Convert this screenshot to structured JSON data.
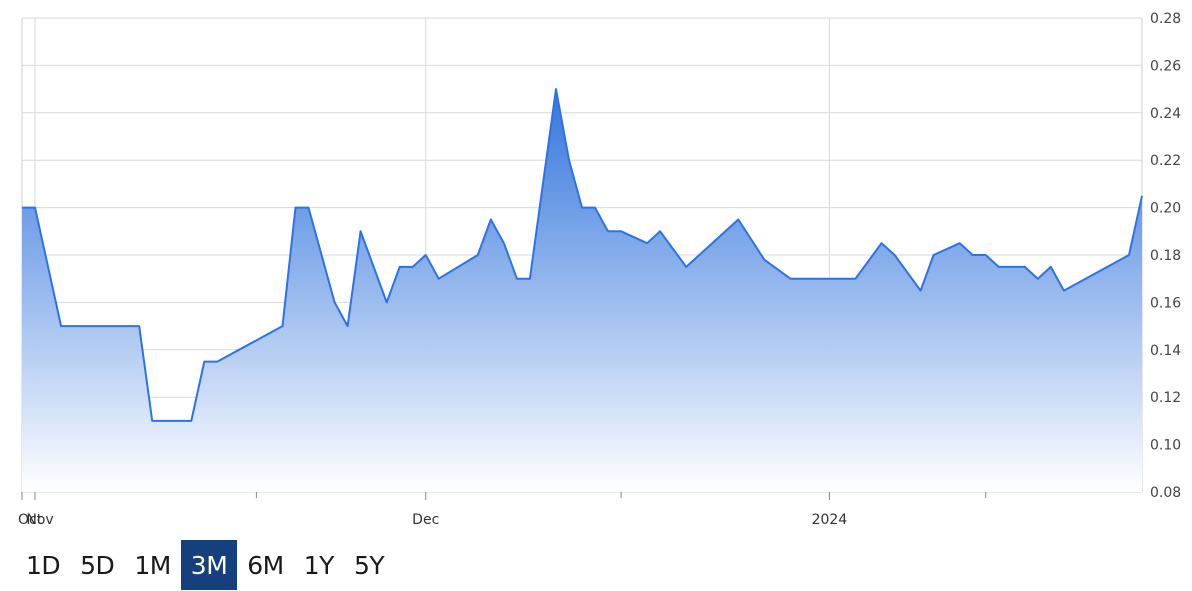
{
  "chart_data": {
    "type": "area",
    "title": "",
    "xlabel": "",
    "ylabel": "",
    "ylim": [
      0.08,
      0.28
    ],
    "y_ticks": [
      "0.08",
      "0.10",
      "0.12",
      "0.14",
      "0.16",
      "0.18",
      "0.20",
      "0.22",
      "0.24",
      "0.26",
      "0.28"
    ],
    "x_ticks": [
      {
        "label": "Oct",
        "date": "2023-10-31"
      },
      {
        "label": "Nov",
        "date": "2023-11-01"
      },
      {
        "label": "Dec",
        "date": "2023-12-01"
      },
      {
        "label": "2024",
        "date": "2024-01-01"
      }
    ],
    "x_range": [
      "2023-10-31",
      "2024-01-25"
    ],
    "grid": true,
    "y_axis_position": "right",
    "fill_gradient": [
      "#2a6fdb",
      "#ffffff"
    ],
    "line_color": "#2e72e6",
    "series": [
      {
        "points": [
          [
            "2023-10-31",
            0.2
          ],
          [
            "2023-11-01",
            0.2
          ],
          [
            "2023-11-03",
            0.15
          ],
          [
            "2023-11-06",
            0.15
          ],
          [
            "2023-11-07",
            0.15
          ],
          [
            "2023-11-08",
            0.15
          ],
          [
            "2023-11-09",
            0.15
          ],
          [
            "2023-11-10",
            0.11
          ],
          [
            "2023-11-13",
            0.11
          ],
          [
            "2023-11-14",
            0.135
          ],
          [
            "2023-11-15",
            0.135
          ],
          [
            "2023-11-20",
            0.15
          ],
          [
            "2023-11-21",
            0.2
          ],
          [
            "2023-11-22",
            0.2
          ],
          [
            "2023-11-24",
            0.16
          ],
          [
            "2023-11-25",
            0.15
          ],
          [
            "2023-11-26",
            0.19
          ],
          [
            "2023-11-28",
            0.16
          ],
          [
            "2023-11-29",
            0.175
          ],
          [
            "2023-11-30",
            0.175
          ],
          [
            "2023-12-01",
            0.18
          ],
          [
            "2023-12-02",
            0.17
          ],
          [
            "2023-12-05",
            0.18
          ],
          [
            "2023-12-06",
            0.195
          ],
          [
            "2023-12-07",
            0.185
          ],
          [
            "2023-12-08",
            0.17
          ],
          [
            "2023-12-09",
            0.17
          ],
          [
            "2023-12-11",
            0.25
          ],
          [
            "2023-12-12",
            0.22
          ],
          [
            "2023-12-13",
            0.2
          ],
          [
            "2023-12-14",
            0.2
          ],
          [
            "2023-12-15",
            0.19
          ],
          [
            "2023-12-16",
            0.19
          ],
          [
            "2023-12-18",
            0.185
          ],
          [
            "2023-12-19",
            0.19
          ],
          [
            "2023-12-21",
            0.175
          ],
          [
            "2023-12-25",
            0.195
          ],
          [
            "2023-12-27",
            0.178
          ],
          [
            "2023-12-29",
            0.17
          ],
          [
            "2024-01-03",
            0.17
          ],
          [
            "2024-01-05",
            0.185
          ],
          [
            "2024-01-06",
            0.18
          ],
          [
            "2024-01-08",
            0.165
          ],
          [
            "2024-01-09",
            0.18
          ],
          [
            "2024-01-11",
            0.185
          ],
          [
            "2024-01-12",
            0.18
          ],
          [
            "2024-01-13",
            0.18
          ],
          [
            "2024-01-14",
            0.175
          ],
          [
            "2024-01-16",
            0.175
          ],
          [
            "2024-01-17",
            0.17
          ],
          [
            "2024-01-18",
            0.175
          ],
          [
            "2024-01-19",
            0.165
          ],
          [
            "2024-01-24",
            0.18
          ],
          [
            "2024-01-25",
            0.205
          ]
        ]
      }
    ]
  },
  "range_selector": {
    "options": [
      "1D",
      "5D",
      "1M",
      "3M",
      "6M",
      "1Y",
      "5Y"
    ],
    "selected": "3M"
  }
}
